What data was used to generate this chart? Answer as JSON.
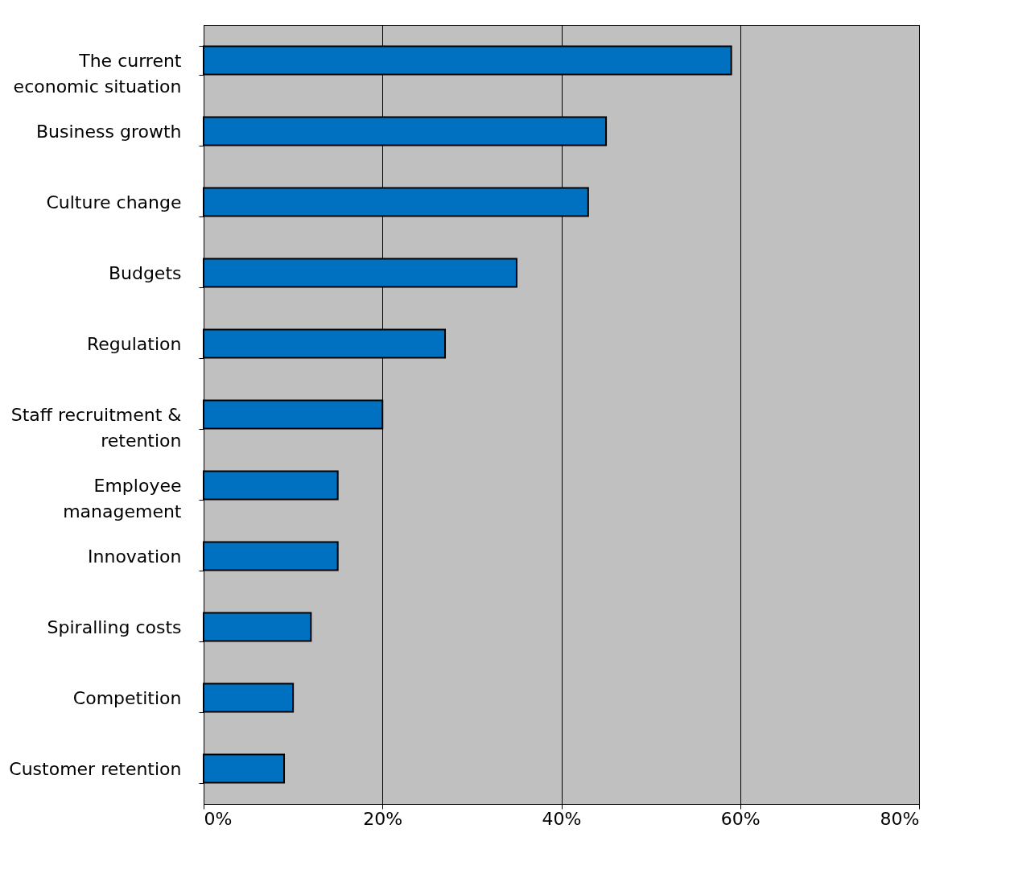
{
  "chart_data": {
    "type": "bar",
    "orientation": "horizontal",
    "categories": [
      "The current\neconomic situation",
      "Business growth",
      "Culture change",
      "Budgets",
      "Regulation",
      "Staff recruitment &\nretention",
      "Employee\nmanagement",
      "Innovation",
      "Spiralling costs",
      "Competition",
      "Customer retention"
    ],
    "values": [
      59,
      45,
      43,
      35,
      27,
      20,
      15,
      15,
      12,
      10,
      9
    ],
    "color": "#0070c0",
    "xlim": [
      0,
      80
    ],
    "xticks": [
      {
        "value": 0,
        "label": "0%"
      },
      {
        "value": 20,
        "label": "20%"
      },
      {
        "value": 40,
        "label": "40%"
      },
      {
        "value": 60,
        "label": "60%"
      },
      {
        "value": 80,
        "label": "80%"
      }
    ],
    "grid": "x",
    "legend": false
  }
}
